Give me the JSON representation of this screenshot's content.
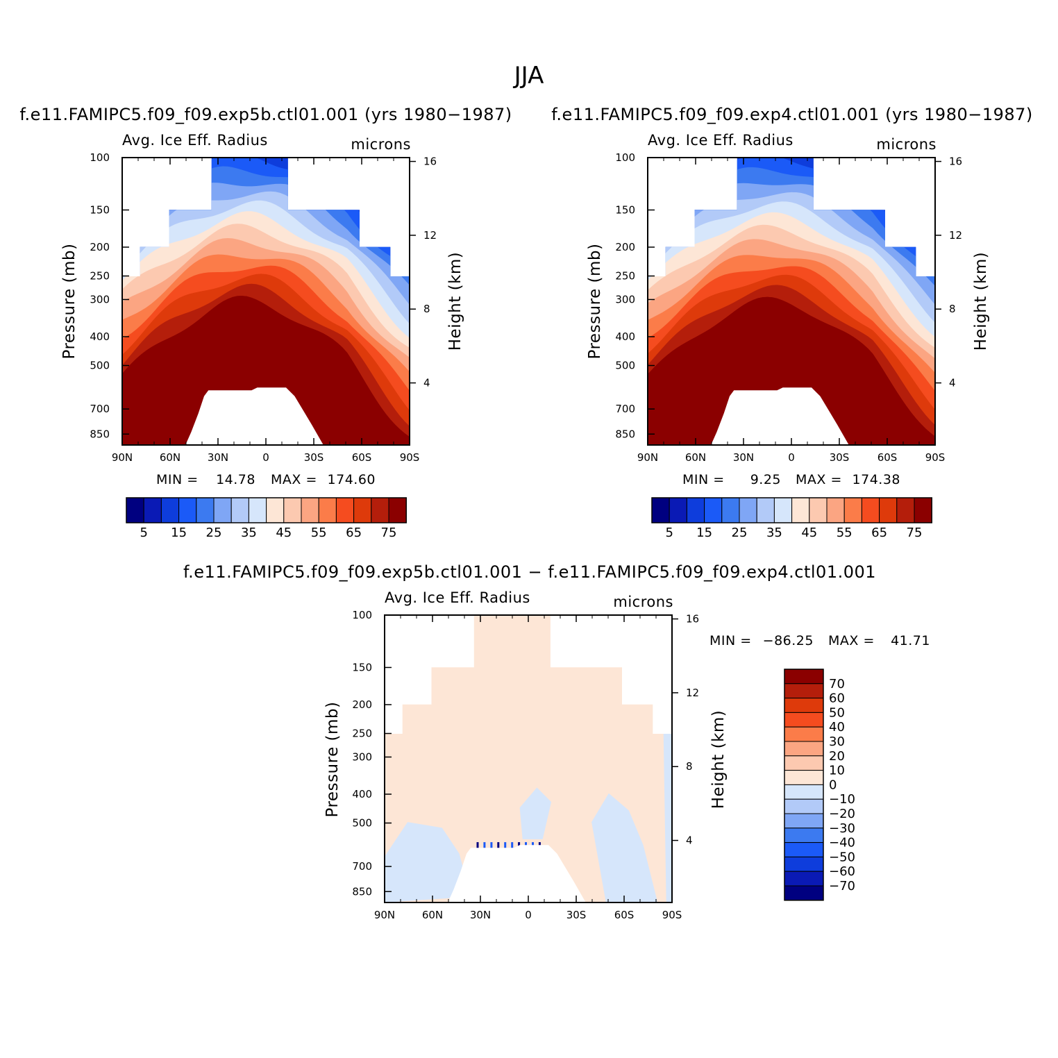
{
  "chart_data": {
    "type": "contour",
    "title": "JJA",
    "panels": [
      {
        "id": "exp5b",
        "subtitle": "f.e11.FAMIPC5.f09_f09.exp5b.ctl01.001 (yrs 1980−1987)",
        "left_label": "Avg. Ice Eff. Radius",
        "right_label": "microns",
        "ylabel": "Pressure (mb)",
        "ylabel_right": "Height (km)",
        "x_ticks": [
          "90N",
          "60N",
          "30N",
          "0",
          "30S",
          "60S",
          "90S"
        ],
        "y_ticks": [
          "100",
          "150",
          "200",
          "250",
          "300",
          "400",
          "500",
          "700",
          "850"
        ],
        "y_ticks_right": [
          "16",
          "12",
          "8",
          "4"
        ],
        "min_label": "MIN =",
        "min_value": "14.78",
        "max_label": "MAX =",
        "max_value": "174.60",
        "colorbar_labels": [
          "5",
          "15",
          "25",
          "35",
          "45",
          "55",
          "65",
          "75"
        ]
      },
      {
        "id": "exp4",
        "subtitle": "f.e11.FAMIPC5.f09_f09.exp4.ctl01.001 (yrs 1980−1987)",
        "left_label": "Avg. Ice Eff. Radius",
        "right_label": "microns",
        "ylabel": "Pressure (mb)",
        "ylabel_right": "Height (km)",
        "x_ticks": [
          "90N",
          "60N",
          "30N",
          "0",
          "30S",
          "60S",
          "90S"
        ],
        "y_ticks": [
          "100",
          "150",
          "200",
          "250",
          "300",
          "400",
          "500",
          "700",
          "850"
        ],
        "y_ticks_right": [
          "16",
          "12",
          "8",
          "4"
        ],
        "min_label": "MIN =",
        "min_value": "9.25",
        "max_label": "MAX =",
        "max_value": "174.38",
        "colorbar_labels": [
          "5",
          "15",
          "25",
          "35",
          "45",
          "55",
          "65",
          "75"
        ]
      },
      {
        "id": "diff",
        "subtitle": "f.e11.FAMIPC5.f09_f09.exp5b.ctl01.001 − f.e11.FAMIPC5.f09_f09.exp4.ctl01.001",
        "left_label": "Avg. Ice Eff. Radius",
        "right_label": "microns",
        "ylabel": "Pressure (mb)",
        "ylabel_right": "Height (km)",
        "x_ticks": [
          "90N",
          "60N",
          "30N",
          "0",
          "30S",
          "60S",
          "90S"
        ],
        "y_ticks": [
          "100",
          "150",
          "200",
          "250",
          "300",
          "400",
          "500",
          "700",
          "850"
        ],
        "y_ticks_right": [
          "16",
          "12",
          "8",
          "4"
        ],
        "min_label": "MIN =",
        "min_value": "−86.25",
        "max_label": "MAX =",
        "max_value": "41.71",
        "colorbar_labels": [
          "70",
          "60",
          "50",
          "40",
          "30",
          "20",
          "10",
          "0",
          "−10",
          "−20",
          "−30",
          "−40",
          "−50",
          "−60",
          "−70"
        ]
      }
    ],
    "colors_abs": [
      "#000080",
      "#0a1ab5",
      "#0e3ddc",
      "#1b5af7",
      "#3c7af0",
      "#7fa6f5",
      "#b2caf8",
      "#d6e6fb",
      "#fde6d6",
      "#fcc9b0",
      "#fba582",
      "#fb7c49",
      "#f54c1f",
      "#de3a0b",
      "#b41e0b",
      "#8b0000"
    ],
    "colors_diff": [
      "#8b0000",
      "#b41e0b",
      "#de3a0b",
      "#f54c1f",
      "#fb7c49",
      "#fba582",
      "#fcc9b0",
      "#fde6d6",
      "#d6e6fb",
      "#b2caf8",
      "#7fa6f5",
      "#3c7af0",
      "#1b5af7",
      "#0e3ddc",
      "#0a1ab5",
      "#000080"
    ]
  }
}
